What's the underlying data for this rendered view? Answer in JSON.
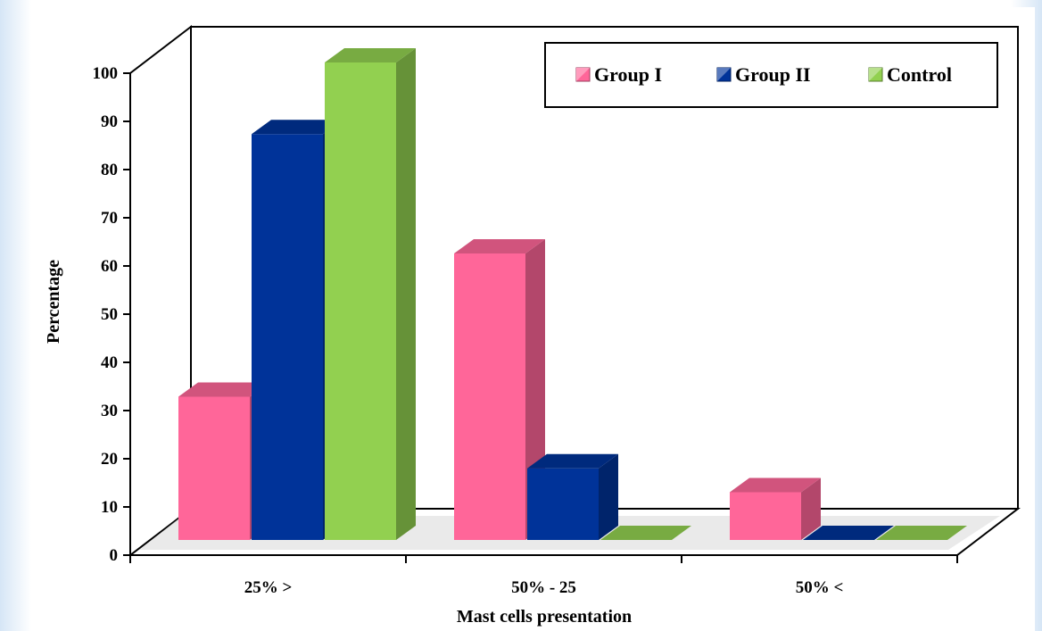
{
  "chart_data": {
    "type": "bar",
    "three_d": true,
    "categories": [
      "25% >",
      "50% - 25",
      "50% <"
    ],
    "series": [
      {
        "name": "Group I",
        "values": [
          30,
          60,
          10
        ],
        "color": "#ff6699"
      },
      {
        "name": "Group II",
        "values": [
          85,
          15,
          0
        ],
        "color": "#003399"
      },
      {
        "name": "Control",
        "values": [
          100,
          0,
          0
        ],
        "color": "#92d050"
      }
    ],
    "ylabel": "Percentage",
    "xlabel": "Mast cells presentation",
    "ylim": [
      0,
      100
    ],
    "yticks": [
      0,
      10,
      20,
      30,
      40,
      50,
      60,
      70,
      80,
      90,
      100
    ],
    "legend": {
      "placement": "top-right"
    },
    "grid": false
  }
}
